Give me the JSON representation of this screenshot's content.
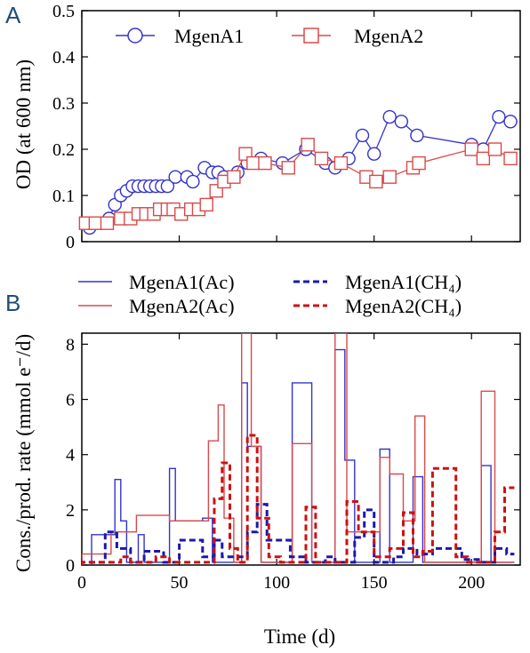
{
  "colors": {
    "blue": "#3333cc",
    "red": "#d94a4a",
    "axis": "#000000",
    "panel_letter": "#1f4e79"
  },
  "chart_data": [
    {
      "panel": "A",
      "type": "line",
      "ylabel": "OD (at 600 nm)",
      "xlim": [
        0,
        225
      ],
      "ylim": [
        0,
        0.5
      ],
      "yticks": [
        "0",
        "0.1",
        "0.2",
        "0.3",
        "0.4",
        "0.5"
      ],
      "legend_position": "top",
      "grid": false,
      "series": [
        {
          "name": "MgenA1",
          "marker": "circle",
          "color": "#3333cc",
          "points": [
            [
              4,
              0.03
            ],
            [
              10,
              0.04
            ],
            [
              14,
              0.05
            ],
            [
              17,
              0.08
            ],
            [
              20,
              0.1
            ],
            [
              23,
              0.11
            ],
            [
              26,
              0.12
            ],
            [
              29,
              0.12
            ],
            [
              32,
              0.12
            ],
            [
              35,
              0.12
            ],
            [
              38,
              0.12
            ],
            [
              41,
              0.12
            ],
            [
              44,
              0.12
            ],
            [
              48,
              0.14
            ],
            [
              54,
              0.14
            ],
            [
              57,
              0.13
            ],
            [
              63,
              0.16
            ],
            [
              67,
              0.15
            ],
            [
              70,
              0.15
            ],
            [
              73,
              0.14
            ],
            [
              80,
              0.15
            ],
            [
              85,
              0.17
            ],
            [
              92,
              0.18
            ],
            [
              103,
              0.17
            ],
            [
              115,
              0.2
            ],
            [
              125,
              0.17
            ],
            [
              130,
              0.16
            ],
            [
              137,
              0.18
            ],
            [
              144,
              0.23
            ],
            [
              150,
              0.19
            ],
            [
              158,
              0.27
            ],
            [
              164,
              0.26
            ],
            [
              172,
              0.23
            ],
            [
              200,
              0.21
            ],
            [
              206,
              0.2
            ],
            [
              214,
              0.27
            ],
            [
              220,
              0.26
            ]
          ]
        },
        {
          "name": "MgenA2",
          "marker": "square",
          "color": "#d94a4a",
          "points": [
            [
              2,
              0.04
            ],
            [
              7,
              0.04
            ],
            [
              13,
              0.04
            ],
            [
              20,
              0.05
            ],
            [
              25,
              0.05
            ],
            [
              29,
              0.06
            ],
            [
              33,
              0.06
            ],
            [
              37,
              0.06
            ],
            [
              40,
              0.07
            ],
            [
              44,
              0.07
            ],
            [
              47,
              0.07
            ],
            [
              51,
              0.06
            ],
            [
              56,
              0.07
            ],
            [
              60,
              0.07
            ],
            [
              64,
              0.08
            ],
            [
              69,
              0.11
            ],
            [
              73,
              0.13
            ],
            [
              78,
              0.14
            ],
            [
              84,
              0.19
            ],
            [
              88,
              0.17
            ],
            [
              94,
              0.17
            ],
            [
              106,
              0.16
            ],
            [
              116,
              0.21
            ],
            [
              123,
              0.18
            ],
            [
              133,
              0.17
            ],
            [
              146,
              0.14
            ],
            [
              151,
              0.13
            ],
            [
              158,
              0.14
            ],
            [
              170,
              0.16
            ],
            [
              173,
              0.17
            ],
            [
              200,
              0.2
            ],
            [
              206,
              0.18
            ],
            [
              212,
              0.2
            ],
            [
              220,
              0.18
            ]
          ]
        }
      ]
    },
    {
      "panel": "B",
      "type": "line",
      "step": true,
      "xlabel": "Time (d)",
      "ylabel": "Cons./prod. rate (mmol e⁻/d)",
      "xlim": [
        0,
        225
      ],
      "ylim": [
        0,
        8.4
      ],
      "xticks": [
        "0",
        "50",
        "100",
        "150",
        "200"
      ],
      "yticks": [
        "0",
        "2",
        "4",
        "6",
        "8"
      ],
      "legend_position": "top",
      "grid": false,
      "series": [
        {
          "name": "MgenA1(Ac)",
          "style": "solid",
          "color": "#3333cc",
          "steps": [
            [
              5,
              1.1
            ],
            [
              14,
              1.1
            ],
            [
              17,
              3.1
            ],
            [
              20,
              1.6
            ],
            [
              23,
              0.1
            ],
            [
              25,
              0.1
            ],
            [
              29,
              1.1
            ],
            [
              32,
              0.1
            ],
            [
              45,
              3.5
            ],
            [
              48,
              1.6
            ],
            [
              55,
              1.6
            ],
            [
              62,
              1.7
            ],
            [
              67,
              0.1
            ],
            [
              82,
              6.6
            ],
            [
              85,
              4.3
            ],
            [
              89,
              4.3
            ],
            [
              92,
              0.1
            ],
            [
              108,
              6.6
            ],
            [
              118,
              0.1
            ],
            [
              130,
              7.8
            ],
            [
              135,
              3.8
            ],
            [
              140,
              0.1
            ],
            [
              153,
              4.2
            ],
            [
              158,
              0.1
            ],
            [
              170,
              3.2
            ],
            [
              175,
              0.1
            ],
            [
              205,
              3.6
            ],
            [
              210,
              0.1
            ],
            [
              222,
              0.1
            ]
          ]
        },
        {
          "name": "MgenA2(Ac)",
          "style": "solid",
          "color": "#d94a4a",
          "steps": [
            [
              0,
              0.4
            ],
            [
              15,
              1.2
            ],
            [
              28,
              1.8
            ],
            [
              38,
              1.8
            ],
            [
              45,
              1.6
            ],
            [
              62,
              1.6
            ],
            [
              65,
              4.5
            ],
            [
              70,
              5.8
            ],
            [
              73,
              1.7
            ],
            [
              78,
              0.1
            ],
            [
              82,
              8.4
            ],
            [
              87,
              4.3
            ],
            [
              92,
              0.1
            ],
            [
              108,
              4.4
            ],
            [
              118,
              0.1
            ],
            [
              130,
              8.4
            ],
            [
              136,
              1.2
            ],
            [
              153,
              3.9
            ],
            [
              158,
              3.3
            ],
            [
              165,
              1.6
            ],
            [
              171,
              5.4
            ],
            [
              176,
              0.1
            ],
            [
              205,
              6.3
            ],
            [
              212,
              0.1
            ],
            [
              222,
              0.1
            ]
          ]
        },
        {
          "name": "MgenA1(CH₄)",
          "style": "dashed",
          "color": "#1a1aa8",
          "steps": [
            [
              0,
              0.1
            ],
            [
              12,
              1.2
            ],
            [
              18,
              0.6
            ],
            [
              25,
              0.1
            ],
            [
              32,
              0.5
            ],
            [
              38,
              0.5
            ],
            [
              42,
              0.1
            ],
            [
              50,
              0.9
            ],
            [
              58,
              0.9
            ],
            [
              62,
              0.3
            ],
            [
              68,
              0.9
            ],
            [
              72,
              0.3
            ],
            [
              80,
              0.3
            ],
            [
              85,
              1.2
            ],
            [
              90,
              2.2
            ],
            [
              95,
              0.9
            ],
            [
              102,
              0.9
            ],
            [
              107,
              0.3
            ],
            [
              115,
              0.1
            ],
            [
              125,
              0.3
            ],
            [
              130,
              0.1
            ],
            [
              140,
              1.0
            ],
            [
              145,
              2.0
            ],
            [
              150,
              0.1
            ],
            [
              160,
              0.3
            ],
            [
              165,
              0.6
            ],
            [
              172,
              0.4
            ],
            [
              180,
              0.6
            ],
            [
              190,
              0.6
            ],
            [
              195,
              0.2
            ],
            [
              205,
              0.1
            ],
            [
              212,
              0.6
            ],
            [
              218,
              0.4
            ],
            [
              222,
              0.4
            ]
          ]
        },
        {
          "name": "MgenA2(CH₄)",
          "style": "dashed",
          "color": "#cc1111",
          "steps": [
            [
              0,
              0.1
            ],
            [
              20,
              0.3
            ],
            [
              25,
              0.1
            ],
            [
              38,
              0.3
            ],
            [
              45,
              0.1
            ],
            [
              68,
              2.4
            ],
            [
              72,
              3.7
            ],
            [
              76,
              0.6
            ],
            [
              80,
              0.1
            ],
            [
              85,
              4.7
            ],
            [
              90,
              1.7
            ],
            [
              96,
              0.3
            ],
            [
              102,
              0.1
            ],
            [
              115,
              2.1
            ],
            [
              120,
              0.1
            ],
            [
              136,
              2.3
            ],
            [
              142,
              1.2
            ],
            [
              150,
              0.3
            ],
            [
              158,
              0.6
            ],
            [
              165,
              1.9
            ],
            [
              170,
              0.3
            ],
            [
              175,
              0.5
            ],
            [
              180,
              3.5
            ],
            [
              192,
              0.3
            ],
            [
              198,
              0.1
            ],
            [
              212,
              1.2
            ],
            [
              217,
              2.8
            ],
            [
              222,
              2.8
            ]
          ]
        }
      ]
    }
  ]
}
